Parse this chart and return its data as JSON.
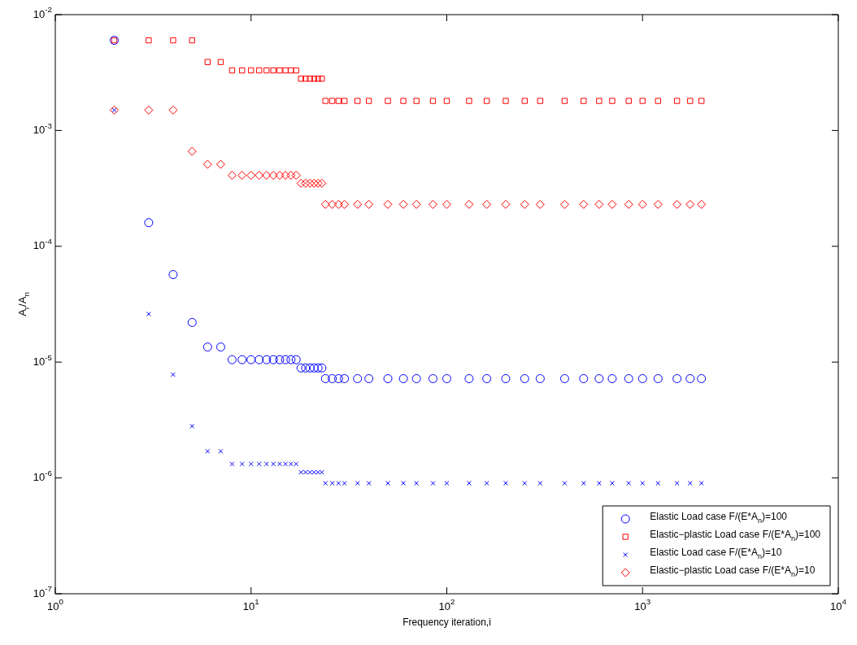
{
  "chart_data": {
    "type": "scatter",
    "xlabel": "Frequency iteration,i",
    "ylabel": "A$_{r}$/A$_{n}$",
    "log": "xy",
    "grid": false,
    "legend": "bottom right",
    "xlim": [
      1,
      10000
    ],
    "xticks": [
      {
        "value": 1,
        "label": "10$^{0}$"
      },
      {
        "value": 10,
        "label": "10$^{1}$"
      },
      {
        "value": 100,
        "label": "10$^{2}$"
      },
      {
        "value": 1000,
        "label": "10$^{3}$"
      },
      {
        "value": 10000,
        "label": "10$^{4}$"
      }
    ],
    "ylim": [
      1e-07,
      0.01
    ],
    "yticks": [
      {
        "value": 1e-07,
        "label": "10$^{-7}$"
      },
      {
        "value": 1e-06,
        "label": "10$^{-6}$"
      },
      {
        "value": 1e-05,
        "label": "10$^{-5}$"
      },
      {
        "value": 0.0001,
        "label": "10$^{-4}$"
      },
      {
        "value": 0.001,
        "label": "10$^{-3}$"
      },
      {
        "value": 0.01,
        "label": "10$^{-2}$"
      }
    ],
    "x": [
      2,
      3,
      4,
      5,
      6,
      7,
      8,
      9,
      10,
      11,
      12,
      13,
      14,
      15,
      16,
      17,
      18,
      19,
      20,
      21,
      22,
      23,
      24,
      26,
      28,
      30,
      35,
      40,
      50,
      60,
      70,
      85,
      100,
      130,
      160,
      200,
      250,
      300,
      400,
      500,
      600,
      700,
      850,
      1000,
      1200,
      1500,
      1750,
      2000
    ],
    "series": [
      {
        "name": "Elastic Load case F/(E*A$_{n}$)=100",
        "color": "#0000ff",
        "marker": "circle",
        "values": [
          0.006,
          0.00016,
          5.7e-05,
          2.2e-05,
          1.35e-05,
          1.35e-05,
          1.05e-05,
          1.05e-05,
          1.05e-05,
          1.05e-05,
          1.05e-05,
          1.05e-05,
          1.05e-05,
          1.05e-05,
          1.05e-05,
          1.05e-05,
          8.9e-06,
          8.9e-06,
          8.9e-06,
          8.9e-06,
          8.9e-06,
          8.9e-06,
          7.2e-06,
          7.2e-06,
          7.2e-06,
          7.2e-06,
          7.2e-06,
          7.2e-06,
          7.2e-06,
          7.2e-06,
          7.2e-06,
          7.2e-06,
          7.2e-06,
          7.2e-06,
          7.2e-06,
          7.2e-06,
          7.2e-06,
          7.2e-06,
          7.2e-06,
          7.2e-06,
          7.2e-06,
          7.2e-06,
          7.2e-06,
          7.2e-06,
          7.2e-06,
          7.2e-06,
          7.2e-06,
          7.2e-06
        ]
      },
      {
        "name": "Elastic−plastic Load case F/(E*A$_{n}$)=100",
        "color": "#ff0000",
        "marker": "square",
        "values": [
          0.006,
          0.006,
          0.006,
          0.006,
          0.0039,
          0.0039,
          0.0033,
          0.0033,
          0.0033,
          0.0033,
          0.0033,
          0.0033,
          0.0033,
          0.0033,
          0.0033,
          0.0033,
          0.0028,
          0.0028,
          0.0028,
          0.0028,
          0.0028,
          0.0028,
          0.0018,
          0.0018,
          0.0018,
          0.0018,
          0.0018,
          0.0018,
          0.0018,
          0.0018,
          0.0018,
          0.0018,
          0.0018,
          0.0018,
          0.0018,
          0.0018,
          0.0018,
          0.0018,
          0.0018,
          0.0018,
          0.0018,
          0.0018,
          0.0018,
          0.0018,
          0.0018,
          0.0018,
          0.0018,
          0.0018
        ]
      },
      {
        "name": "Elastic Load case F/(E*A$_{n}$)=10",
        "color": "#0000ff",
        "marker": "cross",
        "values": [
          0.0015,
          2.6e-05,
          7.8e-06,
          2.8e-06,
          1.7e-06,
          1.7e-06,
          1.32e-06,
          1.32e-06,
          1.32e-06,
          1.32e-06,
          1.32e-06,
          1.32e-06,
          1.32e-06,
          1.32e-06,
          1.32e-06,
          1.32e-06,
          1.12e-06,
          1.12e-06,
          1.12e-06,
          1.12e-06,
          1.12e-06,
          1.12e-06,
          9e-07,
          9e-07,
          9e-07,
          9e-07,
          9e-07,
          9e-07,
          9e-07,
          9e-07,
          9e-07,
          9e-07,
          9e-07,
          9e-07,
          9e-07,
          9e-07,
          9e-07,
          9e-07,
          9e-07,
          9e-07,
          9e-07,
          9e-07,
          9e-07,
          9e-07,
          9e-07,
          9e-07,
          9e-07,
          9e-07
        ]
      },
      {
        "name": "Elastic−plastic Load case F/(E*A$_{n}$)=10",
        "color": "#ff0000",
        "marker": "diamond",
        "values": [
          0.0015,
          0.0015,
          0.0015,
          0.00066,
          0.00051,
          0.00051,
          0.00041,
          0.00041,
          0.00041,
          0.00041,
          0.00041,
          0.00041,
          0.00041,
          0.00041,
          0.00041,
          0.00041,
          0.00035,
          0.00035,
          0.00035,
          0.00035,
          0.00035,
          0.00035,
          0.00023,
          0.00023,
          0.00023,
          0.00023,
          0.00023,
          0.00023,
          0.00023,
          0.00023,
          0.00023,
          0.00023,
          0.00023,
          0.00023,
          0.00023,
          0.00023,
          0.00023,
          0.00023,
          0.00023,
          0.00023,
          0.00023,
          0.00023,
          0.00023,
          0.00023,
          0.00023,
          0.00023,
          0.00023,
          0.00023
        ]
      }
    ]
  }
}
